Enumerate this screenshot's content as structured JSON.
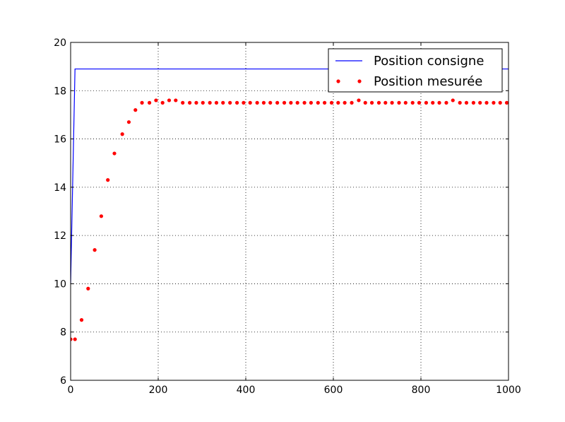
{
  "chart_data": {
    "type": "line",
    "title": "",
    "xlabel": "",
    "ylabel": "",
    "xlim": [
      0,
      1000
    ],
    "ylim": [
      6,
      20
    ],
    "xticks": [
      0,
      200,
      400,
      600,
      800,
      1000
    ],
    "yticks": [
      6,
      8,
      10,
      12,
      14,
      16,
      18,
      20
    ],
    "grid": true,
    "legend_position": "top-right",
    "series": [
      {
        "name": "Position consigne",
        "style": "line",
        "color": "#0000ff",
        "x": [
          0,
          10,
          1000
        ],
        "y": [
          10,
          18.9,
          18.9
        ]
      },
      {
        "name": "Position mesurée",
        "style": "markers",
        "color": "#ff0000",
        "x": [
          0,
          10,
          25,
          40,
          55,
          70,
          85,
          100,
          118,
          133,
          148,
          163,
          180,
          195,
          210,
          225,
          240,
          256,
          272,
          287,
          302,
          318,
          333,
          348,
          364,
          380,
          395,
          410,
          426,
          441,
          456,
          472,
          488,
          503,
          518,
          534,
          549,
          565,
          580,
          596,
          611,
          626,
          642,
          658,
          673,
          688,
          704,
          719,
          734,
          750,
          765,
          781,
          796,
          812,
          827,
          842,
          858,
          873,
          889,
          904,
          920,
          935,
          950,
          966,
          981,
          996
        ],
        "y": [
          7.7,
          7.7,
          8.5,
          9.8,
          11.4,
          12.8,
          14.3,
          15.4,
          16.2,
          16.7,
          17.2,
          17.5,
          17.5,
          17.6,
          17.5,
          17.6,
          17.6,
          17.5,
          17.5,
          17.5,
          17.5,
          17.5,
          17.5,
          17.5,
          17.5,
          17.5,
          17.5,
          17.5,
          17.5,
          17.5,
          17.5,
          17.5,
          17.5,
          17.5,
          17.5,
          17.5,
          17.5,
          17.5,
          17.5,
          17.5,
          17.5,
          17.5,
          17.5,
          17.6,
          17.5,
          17.5,
          17.5,
          17.5,
          17.5,
          17.5,
          17.5,
          17.5,
          17.5,
          17.5,
          17.5,
          17.5,
          17.5,
          17.6,
          17.5,
          17.5,
          17.5,
          17.5,
          17.5,
          17.5,
          17.5,
          17.5
        ]
      }
    ]
  }
}
